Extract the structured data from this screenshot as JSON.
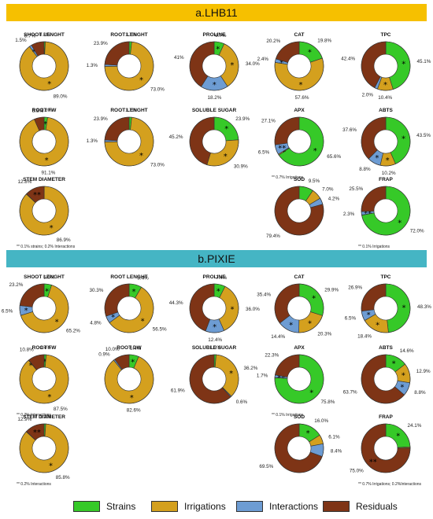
{
  "colors": {
    "strains": "#36c928",
    "irrigations": "#d4a01e",
    "interactions": "#6d9cd3",
    "residuals": "#7e3416",
    "banner_a": "#f6c000",
    "banner_b": "#45b5c4"
  },
  "sections": [
    {
      "id": "a",
      "label": "a.LHB11"
    },
    {
      "id": "b",
      "label": "b.PIXIE"
    }
  ],
  "legend": [
    {
      "name": "Strains",
      "color_key": "strains"
    },
    {
      "name": "Irrigations",
      "color_key": "irrigations"
    },
    {
      "name": "Interactions",
      "color_key": "interactions"
    },
    {
      "name": "Residuals",
      "color_key": "residuals"
    }
  ],
  "chart_data": [
    {
      "type": "pie",
      "section": "a",
      "title": "SHOOT LENGHT",
      "categories": [
        "Strains",
        "Irrigations",
        "Interactions",
        "Residuals"
      ],
      "values": [
        0.8,
        89.0,
        1.5,
        8.7
      ],
      "labels": [
        "0.8%",
        "89.0%",
        "1.5%",
        "8.7%"
      ],
      "stars": [
        "",
        "*",
        "*",
        ""
      ],
      "note": ""
    },
    {
      "type": "pie",
      "section": "a",
      "title": "ROOT LENGHT",
      "categories": [
        "Strains",
        "Irrigations",
        "Interactions",
        "Residuals"
      ],
      "values": [
        1.7,
        73.0,
        1.3,
        23.9
      ],
      "labels": [
        "1.7%",
        "73.0%",
        "1.3%",
        "23.9%"
      ],
      "stars": [
        "",
        "*",
        "",
        ""
      ],
      "note": ""
    },
    {
      "type": "pie",
      "section": "a",
      "title": "PROLINE",
      "categories": [
        "Strains",
        "Irrigations",
        "Interactions",
        "Residuals"
      ],
      "values": [
        6.7,
        34.0,
        18.2,
        41
      ],
      "labels": [
        "6.7%",
        "34.0%",
        "18.2%",
        "41%"
      ],
      "stars": [
        "*",
        "*",
        "*",
        ""
      ],
      "note": ""
    },
    {
      "type": "pie",
      "section": "a",
      "title": "CAT",
      "categories": [
        "Strains",
        "Irrigations",
        "Interactions",
        "Residuals"
      ],
      "values": [
        19.8,
        57.6,
        2.4,
        20.2
      ],
      "labels": [
        "19.8%",
        "57.6%",
        "2.4%",
        "20.2%"
      ],
      "stars": [
        "*",
        "*",
        "*",
        ""
      ],
      "note": ""
    },
    {
      "type": "pie",
      "section": "a",
      "title": "TPC",
      "categories": [
        "Strains",
        "Irrigations",
        "Interactions",
        "Residuals"
      ],
      "values": [
        45.1,
        10.4,
        2.0,
        42.4
      ],
      "labels": [
        "45.1%",
        "10.4%",
        "2.0%",
        "42.4%"
      ],
      "stars": [
        "*",
        "*",
        "",
        ""
      ],
      "note": ""
    },
    {
      "type": "pie",
      "section": "a",
      "title": "ROOT FW",
      "categories": [
        "Strains",
        "Irrigations",
        "Interactions",
        "Residuals"
      ],
      "values": [
        2.3,
        91.1,
        0,
        6.6
      ],
      "labels": [
        "2.3%",
        "91.1%",
        "",
        "6.6%"
      ],
      "stars": [
        "*",
        "*",
        "",
        ""
      ],
      "note": ""
    },
    {
      "type": "pie",
      "section": "a",
      "title": "ROOT LENGHT",
      "categories": [
        "Strains",
        "Irrigations",
        "Interactions",
        "Residuals"
      ],
      "values": [
        1.7,
        73.0,
        1.3,
        23.9
      ],
      "labels": [
        "1.7%",
        "73.0%",
        "1.3%",
        "23.9%"
      ],
      "stars": [
        "",
        "*",
        "",
        ""
      ],
      "note": ""
    },
    {
      "type": "pie",
      "section": "a",
      "title": "SOLUBLE SUGAR",
      "categories": [
        "Strains",
        "Irrigations",
        "Interactions",
        "Residuals"
      ],
      "values": [
        23.9,
        30.9,
        0,
        45.2
      ],
      "labels": [
        "23.9%",
        "30.9%",
        "",
        "45.2%"
      ],
      "stars": [
        "*",
        "*",
        "",
        ""
      ],
      "note": ""
    },
    {
      "type": "pie",
      "section": "a",
      "title": "APX",
      "categories": [
        "Strains",
        "Irrigations",
        "Interactions",
        "Residuals"
      ],
      "values": [
        65.6,
        0.7,
        6.5,
        27.1
      ],
      "labels": [
        "65.6%",
        "",
        "6.5%",
        "27.1%"
      ],
      "stars": [
        "*",
        "*",
        "**",
        ""
      ],
      "note": "** 0.7% Irrigations"
    },
    {
      "type": "pie",
      "section": "a",
      "title": "ABTS",
      "categories": [
        "Strains",
        "Irrigations",
        "Interactions",
        "Residuals"
      ],
      "values": [
        43.5,
        10.2,
        8.8,
        37.6
      ],
      "labels": [
        "43.5%",
        "10.2%",
        "8.8%",
        "37.6%"
      ],
      "stars": [
        "*",
        "*",
        "*",
        ""
      ],
      "note": ""
    },
    {
      "type": "pie",
      "section": "a",
      "title": "STEM DIAMETER",
      "categories": [
        "Strains",
        "Irrigations",
        "Interactions",
        "Residuals"
      ],
      "values": [
        0.1,
        86.9,
        0.2,
        12.8
      ],
      "labels": [
        "",
        "86.9%",
        "",
        "12.8%"
      ],
      "stars": [
        "",
        "*",
        "",
        "**"
      ],
      "note": "** 0.1% strains; 0.2% Interactions"
    },
    {
      "type": "pie",
      "section": "a",
      "title": "SOD",
      "categories": [
        "Strains",
        "Irrigations",
        "Interactions",
        "Residuals"
      ],
      "values": [
        9.5,
        7.0,
        4.2,
        79.4
      ],
      "labels": [
        "9.5%",
        "7.0%",
        "4.2%",
        "79.4%"
      ],
      "stars": [
        "",
        "",
        "",
        ""
      ],
      "note": ""
    },
    {
      "type": "pie",
      "section": "a",
      "title": "FRAP",
      "categories": [
        "Strains",
        "Irrigations",
        "Interactions",
        "Residuals"
      ],
      "values": [
        72.0,
        0.1,
        2.3,
        25.5
      ],
      "labels": [
        "72.0%",
        "",
        "2.3%",
        "25.5%"
      ],
      "stars": [
        "*",
        "",
        "**",
        ""
      ],
      "note": "** 0.1% Irrigations"
    },
    {
      "type": "pie",
      "section": "b",
      "title": "SHOOT LENGHT",
      "categories": [
        "Strains",
        "Irrigations",
        "Interactions",
        "Residuals"
      ],
      "values": [
        5.0,
        65.2,
        6.5,
        23.2
      ],
      "labels": [
        "5.0%",
        "65.2%",
        "6.5%",
        "23.2%"
      ],
      "stars": [
        "*",
        "*",
        "*",
        ""
      ],
      "note": ""
    },
    {
      "type": "pie",
      "section": "b",
      "title": "ROOT LENGHT",
      "categories": [
        "Strains",
        "Irrigations",
        "Interactions",
        "Residuals"
      ],
      "values": [
        8.4,
        56.5,
        4.8,
        30.3
      ],
      "labels": [
        "8.4%",
        "56.5%",
        "4.8%",
        "30.3%"
      ],
      "stars": [
        "*",
        "*",
        "*",
        ""
      ],
      "note": ""
    },
    {
      "type": "pie",
      "section": "b",
      "title": "PROLINE",
      "categories": [
        "Strains",
        "Irrigations",
        "Interactions",
        "Residuals"
      ],
      "values": [
        7.4,
        36.0,
        12.4,
        44.3
      ],
      "labels": [
        "7.4%",
        "36.0%",
        "12.4%",
        "44.3%"
      ],
      "stars": [
        "*",
        "*",
        "*",
        ""
      ],
      "note": ""
    },
    {
      "type": "pie",
      "section": "b",
      "title": "CAT",
      "categories": [
        "Strains",
        "Irrigations",
        "Interactions",
        "Residuals"
      ],
      "values": [
        29.9,
        20.3,
        14.4,
        35.4
      ],
      "labels": [
        "29.9%",
        "20.3%",
        "14.4%",
        "35.4%"
      ],
      "stars": [
        "*",
        "*",
        "*",
        ""
      ],
      "note": ""
    },
    {
      "type": "pie",
      "section": "b",
      "title": "TPC",
      "categories": [
        "Strains",
        "Irrigations",
        "Interactions",
        "Residuals"
      ],
      "values": [
        48.3,
        18.4,
        6.5,
        26.9
      ],
      "labels": [
        "48.3%",
        "18.4%",
        "6.5%",
        "26.9%"
      ],
      "stars": [
        "*",
        "*",
        "*",
        ""
      ],
      "note": ""
    },
    {
      "type": "pie",
      "section": "b",
      "title": "ROOT FW",
      "categories": [
        "Strains",
        "Irrigations",
        "Interactions",
        "Residuals"
      ],
      "values": [
        1.4,
        87.5,
        0.2,
        10.8
      ],
      "labels": [
        "1.4%",
        "87.5%",
        "",
        "10.8%"
      ],
      "stars": [
        "*",
        "*",
        "**",
        ""
      ],
      "note": "** 0.2% Interactions"
    },
    {
      "type": "pie",
      "section": "b",
      "title": "ROOT DW",
      "categories": [
        "Strains",
        "Irrigations",
        "Interactions",
        "Residuals"
      ],
      "values": [
        6.4,
        82.6,
        0.9,
        10.0
      ],
      "labels": [
        "6.4%",
        "82.6%",
        "0.9%",
        "10.0%"
      ],
      "stars": [
        "*",
        "*",
        "",
        ""
      ],
      "note": ""
    },
    {
      "type": "pie",
      "section": "b",
      "title": "SOLUBLE SUGAR",
      "categories": [
        "Strains",
        "Irrigations",
        "Interactions",
        "Residuals"
      ],
      "values": [
        1.3,
        36.2,
        0.6,
        61.9
      ],
      "labels": [
        "1.3%",
        "36.2%",
        "0.6%",
        "61.9%"
      ],
      "stars": [
        "",
        "*",
        "",
        ""
      ],
      "note": ""
    },
    {
      "type": "pie",
      "section": "b",
      "title": "APX",
      "categories": [
        "Strains",
        "Irrigations",
        "Interactions",
        "Residuals"
      ],
      "values": [
        75.8,
        0.1,
        1.7,
        22.3
      ],
      "labels": [
        "75.8%",
        "",
        "1.7%",
        "22.3%"
      ],
      "stars": [
        "*",
        "",
        "**",
        ""
      ],
      "note": "** 0.1% Irrigations"
    },
    {
      "type": "pie",
      "section": "b",
      "title": "ABTS",
      "categories": [
        "Strains",
        "Irrigations",
        "Interactions",
        "Residuals"
      ],
      "values": [
        14.6,
        12.9,
        8.8,
        63.7
      ],
      "labels": [
        "14.6%",
        "12.9%",
        "8.8%",
        "63.7%"
      ],
      "stars": [
        "*",
        "*",
        "*",
        ""
      ],
      "note": ""
    },
    {
      "type": "pie",
      "section": "b",
      "title": "STEM DIAMETER",
      "categories": [
        "Strains",
        "Irrigations",
        "Interactions",
        "Residuals"
      ],
      "values": [
        1.1,
        85.8,
        0.2,
        12.9
      ],
      "labels": [
        "1.1%",
        "85.8%",
        "",
        "12.9%"
      ],
      "stars": [
        "",
        "*",
        "",
        "**"
      ],
      "note": "** 0.2% Interactions"
    },
    {
      "type": "pie",
      "section": "b",
      "title": "SOD",
      "categories": [
        "Strains",
        "Irrigations",
        "Interactions",
        "Residuals"
      ],
      "values": [
        16.0,
        6.1,
        8.4,
        69.5
      ],
      "labels": [
        "16.0%",
        "6.1%",
        "8.4%",
        "69.5%"
      ],
      "stars": [
        "*",
        "",
        "",
        ""
      ],
      "note": ""
    },
    {
      "type": "pie",
      "section": "b",
      "title": "FRAP",
      "categories": [
        "Strains",
        "Irrigations",
        "Interactions",
        "Residuals"
      ],
      "values": [
        24.1,
        0.7,
        0.2,
        75.0
      ],
      "labels": [
        "24.1%",
        "",
        "",
        "75.0%"
      ],
      "stars": [
        "*",
        "",
        "",
        "**"
      ],
      "note": "** 0.7% Irrigations; 0.2%Interactions"
    }
  ]
}
